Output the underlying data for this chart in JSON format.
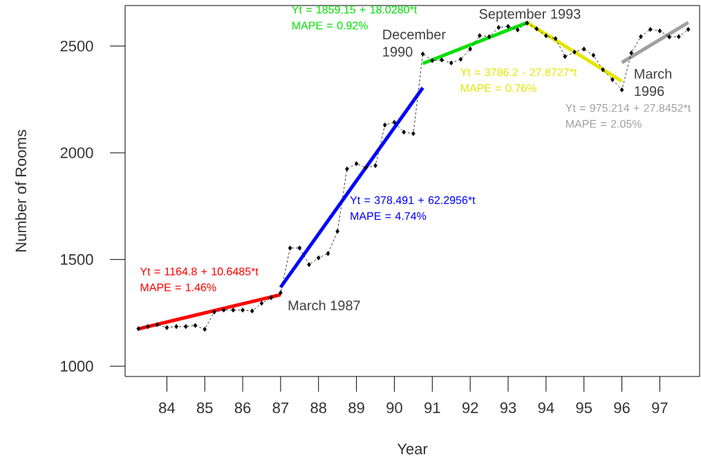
{
  "chart_data": {
    "type": "line",
    "xlabel": "Year",
    "ylabel": "Number of Rooms",
    "xlim": [
      82.9,
      98.05
    ],
    "ylim": [
      952,
      2690
    ],
    "xticks": [
      84,
      85,
      86,
      87,
      88,
      89,
      90,
      91,
      92,
      93,
      94,
      95,
      96,
      97
    ],
    "yticks": [
      1000,
      1500,
      2000,
      2500
    ],
    "marker": "diamond",
    "line_style": "dashed",
    "series": [
      {
        "color": "#000000",
        "x": [
          83.25,
          83.5,
          83.75,
          84.0,
          84.25,
          84.5,
          84.75,
          85.0,
          85.25,
          85.5,
          85.75,
          86.0,
          86.25,
          86.5,
          86.75,
          87.0,
          87.25,
          87.5,
          87.75,
          88.0,
          88.25,
          88.5,
          88.75,
          89.0,
          89.25,
          89.5,
          89.75,
          90.0,
          90.25,
          90.5,
          90.75,
          91.0,
          91.25,
          91.5,
          91.75,
          92.0,
          92.25,
          92.5,
          92.75,
          93.0,
          93.25,
          93.5,
          93.75,
          94.0,
          94.25,
          94.5,
          94.75,
          95.0,
          95.25,
          95.5,
          95.75,
          96.0,
          96.25,
          96.5,
          96.75,
          97.0,
          97.25,
          97.5,
          97.75
        ],
        "values": [
          1176,
          1186,
          1195,
          1181,
          1186,
          1186,
          1191,
          1173,
          1254,
          1263,
          1263,
          1263,
          1259,
          1295,
          1321,
          1344,
          1554,
          1554,
          1476,
          1508,
          1528,
          1632,
          1924,
          1949,
          1930,
          1940,
          2130,
          2143,
          2097,
          2090,
          2463,
          2432,
          2435,
          2421,
          2438,
          2486,
          2549,
          2544,
          2587,
          2592,
          2576,
          2608,
          2581,
          2548,
          2535,
          2451,
          2472,
          2486,
          2457,
          2389,
          2343,
          2295,
          2468,
          2544,
          2578,
          2571,
          2543,
          2544,
          2578
        ]
      },
      {
        "name": "Yt = 1164.8 + 10.6485*t MAPE = 1.46%",
        "color": "#ff0000",
        "marker": "none",
        "line_style": "solid",
        "x": [
          83.25,
          87.0
        ],
        "values": [
          1175,
          1335
        ]
      },
      {
        "name": "Yt = 378.491 + 62.2956*t MAPE = 4.74%",
        "color": "#0000ff",
        "marker": "none",
        "line_style": "solid",
        "x": [
          87.0,
          90.75
        ],
        "values": [
          1370,
          2305
        ]
      },
      {
        "name": "Yt = 1859.15 + 18.0280*t MAPE = 0.92%",
        "color": "#00e000",
        "marker": "none",
        "line_style": "solid",
        "x": [
          90.75,
          93.5
        ],
        "values": [
          2418,
          2610
        ]
      },
      {
        "name": "Yt = 3786.2 - 27.8727*t MAPE = 0.76%",
        "color": "#e6e600",
        "marker": "none",
        "line_style": "solid",
        "x": [
          93.5,
          96.0
        ],
        "values": [
          2610,
          2335
        ]
      },
      {
        "name": "Yt = 975.214 + 27.8452*t MAPE = 2.05%",
        "color": "#a0a0a0",
        "marker": "none",
        "line_style": "solid",
        "x": [
          96.0,
          97.75
        ],
        "values": [
          2423,
          2610
        ]
      }
    ],
    "annotations": [
      {
        "text": "March 1987",
        "x": 87.0,
        "y": 1344
      },
      {
        "text": "December 1990",
        "x": 90.75,
        "y": 2463
      },
      {
        "text": "September 1993",
        "x": 93.5,
        "y": 2608
      },
      {
        "text": "March 1996",
        "x": 96.0,
        "y": 2295
      }
    ]
  }
}
